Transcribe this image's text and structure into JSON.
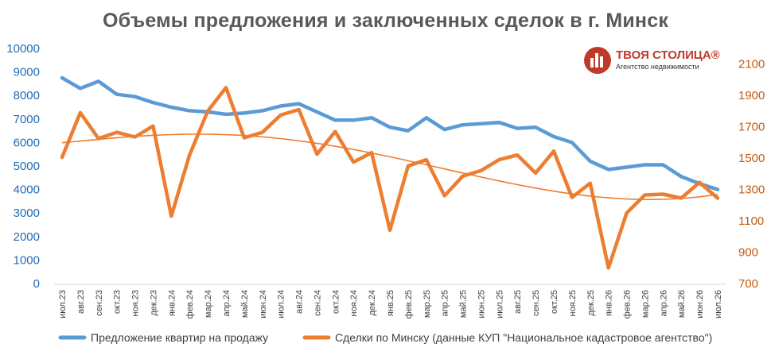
{
  "chart_data": {
    "type": "line",
    "title": "Объемы предложения и заключенных сделок в г. Минск",
    "categories": [
      "июл.23",
      "авг.23",
      "сен.23",
      "окт.23",
      "ноя.23",
      "дек.23",
      "янв.24",
      "фев.24",
      "мар.24",
      "апр.24",
      "май.24",
      "июн.24",
      "июл.24",
      "авг.24",
      "сен.24",
      "окт.24",
      "ноя.24",
      "дек.24",
      "янв.25",
      "фев.25",
      "мар.25",
      "апр.25",
      "май.25",
      "июн.25",
      "июл.25",
      "авг.25",
      "сен.25",
      "окт.25",
      "ноя.25",
      "дек.25",
      "янв.26",
      "фев.26",
      "мар.26",
      "апр.26",
      "май.26",
      "июн.26",
      "июл.26"
    ],
    "y_left": {
      "ylim": [
        0,
        10000
      ],
      "ticks": [
        "0",
        "1000",
        "2000",
        "3000",
        "4000",
        "5000",
        "6000",
        "7000",
        "8000",
        "9000",
        "10000"
      ]
    },
    "y_right": {
      "ylim": [
        700,
        2200
      ],
      "ticks": [
        "700",
        "900",
        "1100",
        "1300",
        "1500",
        "1700",
        "1900",
        "2100"
      ]
    },
    "series": [
      {
        "name": "Предложение квартир на продажу",
        "axis": "left",
        "color": "#5b9bd5",
        "values": [
          8750,
          8300,
          8600,
          8050,
          7950,
          7700,
          7500,
          7350,
          7300,
          7200,
          7250,
          7350,
          7550,
          7650,
          7300,
          6950,
          6950,
          7050,
          6650,
          6500,
          7050,
          6550,
          6750,
          6800,
          6850,
          6600,
          6650,
          6250,
          6000,
          5200,
          4850,
          4950,
          5050,
          5050,
          4550,
          4250,
          4000
        ]
      },
      {
        "name": "Сделки по Минску (данные КУП \"Национальное кадастровое агентство\")",
        "axis": "right",
        "color": "#ed7d31",
        "values": [
          1505,
          1790,
          1625,
          1665,
          1635,
          1705,
          1130,
          1520,
          1800,
          1950,
          1630,
          1665,
          1775,
          1810,
          1525,
          1670,
          1475,
          1535,
          1040,
          1450,
          1490,
          1260,
          1385,
          1420,
          1490,
          1520,
          1405,
          1545,
          1250,
          1340,
          800,
          1150,
          1265,
          1270,
          1245,
          1345,
          1245
        ]
      }
    ],
    "trendline_color": "#ed7d31",
    "grid": false,
    "legend_position": "bottom"
  },
  "logo": {
    "name": "ТВОЯ СТОЛИЦА®",
    "tagline": "Агентство недвижимости"
  }
}
